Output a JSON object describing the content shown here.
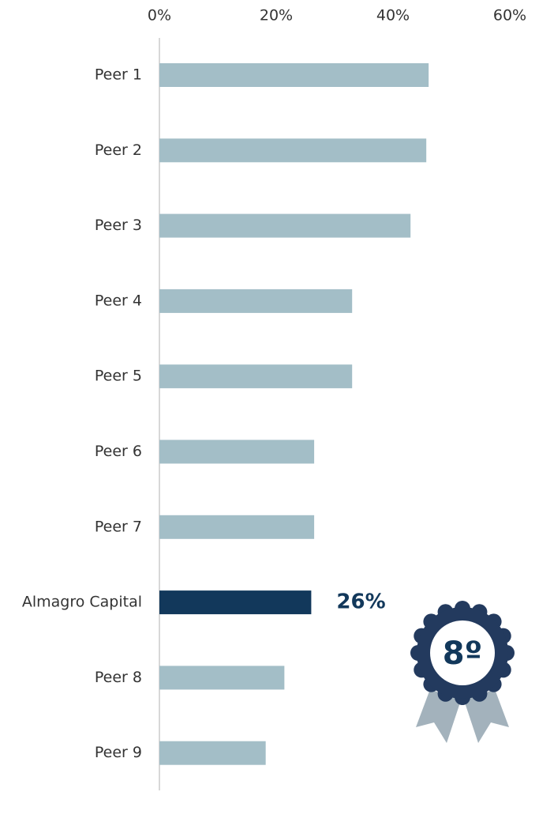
{
  "chart_data": {
    "type": "hbar",
    "categories": [
      "Peer 1",
      "Peer 2",
      "Peer 3",
      "Peer 4",
      "Peer 5",
      "Peer 6",
      "Peer 7",
      "Almagro Capital",
      "Peer 8",
      "Peer 9"
    ],
    "values": [
      46.1,
      45.7,
      43,
      33,
      33,
      26.5,
      26.5,
      26,
      21.4,
      18.2
    ],
    "value_labels": [
      null,
      null,
      null,
      null,
      null,
      null,
      null,
      "26%",
      null,
      null
    ],
    "colors": [
      "#a3bec7",
      "#a3bec7",
      "#a3bec7",
      "#a3bec7",
      "#a3bec7",
      "#a3bec7",
      "#a3bec7",
      "#12385b",
      "#a3bec7",
      "#a3bec7"
    ],
    "xlim": [
      0,
      60
    ],
    "xticks": [
      {
        "value": 0,
        "label": "0%"
      },
      {
        "value": 20,
        "label": "20%"
      },
      {
        "value": 40,
        "label": "40%"
      },
      {
        "value": 60,
        "label": "60%"
      }
    ],
    "badge": "8º"
  }
}
